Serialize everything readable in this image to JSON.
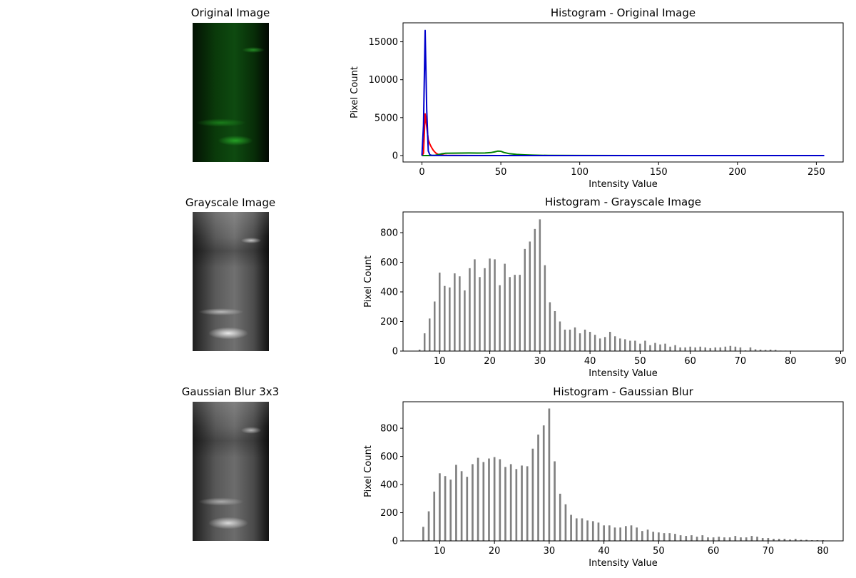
{
  "images": [
    {
      "title": "Original Image",
      "kind": "color"
    },
    {
      "title": "Grayscale Image",
      "kind": "gray"
    },
    {
      "title": "Gaussian Blur 3x3",
      "kind": "blur"
    }
  ],
  "chart_data": [
    {
      "type": "line",
      "title": "Histogram - Original Image",
      "xlabel": "Intensity Value",
      "ylabel": "Pixel Count",
      "xlim": [
        -12,
        267
      ],
      "ylim": [
        -850,
        17500
      ],
      "xticks": [
        0,
        50,
        100,
        150,
        200,
        250
      ],
      "yticks": [
        0,
        5000,
        10000,
        15000
      ],
      "grid": false,
      "series": [
        {
          "color": "#ff0000",
          "x": [
            0,
            1,
            2,
            3,
            4,
            5,
            6,
            7,
            8,
            9,
            10,
            12,
            14,
            16,
            20,
            30,
            50,
            100,
            150,
            200,
            255
          ],
          "y": [
            0,
            300,
            5500,
            3800,
            2100,
            1500,
            1100,
            750,
            500,
            300,
            180,
            80,
            40,
            20,
            10,
            0,
            0,
            0,
            0,
            0,
            0
          ]
        },
        {
          "color": "#008000",
          "x": [
            0,
            5,
            8,
            10,
            12,
            15,
            20,
            25,
            30,
            35,
            40,
            44,
            46,
            48,
            50,
            52,
            55,
            60,
            65,
            70,
            80,
            100,
            150,
            200,
            255
          ],
          "y": [
            0,
            0,
            20,
            120,
            200,
            300,
            320,
            330,
            340,
            330,
            340,
            400,
            480,
            580,
            560,
            400,
            260,
            150,
            90,
            50,
            20,
            5,
            0,
            0,
            0
          ]
        },
        {
          "color": "#0000cc",
          "x": [
            0,
            1,
            2,
            3,
            4,
            5,
            6,
            8,
            10,
            20,
            50,
            100,
            150,
            200,
            255
          ],
          "y": [
            0,
            4000,
            16500,
            6000,
            600,
            100,
            30,
            10,
            5,
            2,
            0,
            0,
            0,
            0,
            0
          ]
        }
      ]
    },
    {
      "type": "bar",
      "title": "Histogram - Grayscale Image",
      "xlabel": "Intensity Value",
      "ylabel": "Pixel Count",
      "xlim": [
        2.7,
        90.5
      ],
      "ylim": [
        0,
        940
      ],
      "xticks": [
        10,
        20,
        30,
        40,
        50,
        60,
        70,
        80,
        90
      ],
      "yticks": [
        0,
        200,
        400,
        600,
        800
      ],
      "grid": false,
      "color": "#808080",
      "x": [
        6,
        7,
        8,
        9,
        10,
        11,
        12,
        13,
        14,
        15,
        16,
        17,
        18,
        19,
        20,
        21,
        22,
        23,
        24,
        25,
        26,
        27,
        28,
        29,
        30,
        31,
        32,
        33,
        34,
        35,
        36,
        37,
        38,
        39,
        40,
        41,
        42,
        43,
        44,
        45,
        46,
        47,
        48,
        49,
        50,
        51,
        52,
        53,
        54,
        55,
        56,
        57,
        58,
        59,
        60,
        61,
        62,
        63,
        64,
        65,
        66,
        67,
        68,
        69,
        70,
        71,
        72,
        73,
        74,
        75,
        76,
        77,
        78,
        79,
        80
      ],
      "values": [
        10,
        120,
        220,
        335,
        530,
        440,
        430,
        525,
        505,
        410,
        560,
        620,
        500,
        560,
        625,
        620,
        445,
        590,
        500,
        515,
        515,
        690,
        740,
        825,
        890,
        580,
        330,
        270,
        200,
        145,
        145,
        160,
        120,
        145,
        130,
        110,
        85,
        95,
        130,
        100,
        85,
        80,
        70,
        70,
        50,
        70,
        40,
        55,
        45,
        50,
        30,
        40,
        25,
        25,
        30,
        25,
        30,
        25,
        20,
        25,
        25,
        30,
        35,
        30,
        25,
        5,
        25,
        12,
        10,
        8,
        10,
        8,
        3,
        3,
        3
      ]
    },
    {
      "type": "bar",
      "title": "Histogram - Gaussian Blur",
      "xlabel": "Intensity Value",
      "ylabel": "Pixel Count",
      "xlim": [
        3.3,
        83.7
      ],
      "ylim": [
        0,
        988
      ],
      "xticks": [
        10,
        20,
        30,
        40,
        50,
        60,
        70,
        80
      ],
      "yticks": [
        0,
        200,
        400,
        600,
        800
      ],
      "grid": false,
      "color": "#808080",
      "x": [
        7,
        8,
        9,
        10,
        11,
        12,
        13,
        14,
        15,
        16,
        17,
        18,
        19,
        20,
        21,
        22,
        23,
        24,
        25,
        26,
        27,
        28,
        29,
        30,
        31,
        32,
        33,
        34,
        35,
        36,
        37,
        38,
        39,
        40,
        41,
        42,
        43,
        44,
        45,
        46,
        47,
        48,
        49,
        50,
        51,
        52,
        53,
        54,
        55,
        56,
        57,
        58,
        59,
        60,
        61,
        62,
        63,
        64,
        65,
        66,
        67,
        68,
        69,
        70,
        71,
        72,
        73,
        74,
        75,
        76,
        77,
        78,
        79,
        80
      ],
      "values": [
        100,
        210,
        350,
        480,
        460,
        435,
        540,
        495,
        455,
        545,
        590,
        560,
        585,
        595,
        580,
        525,
        545,
        510,
        535,
        530,
        655,
        755,
        820,
        940,
        565,
        335,
        260,
        185,
        160,
        160,
        145,
        140,
        130,
        110,
        110,
        95,
        95,
        105,
        110,
        95,
        70,
        80,
        65,
        60,
        55,
        55,
        50,
        40,
        35,
        40,
        30,
        40,
        25,
        25,
        30,
        25,
        25,
        35,
        25,
        25,
        35,
        30,
        20,
        20,
        15,
        15,
        15,
        10,
        15,
        8,
        8,
        5,
        5,
        5
      ]
    }
  ]
}
